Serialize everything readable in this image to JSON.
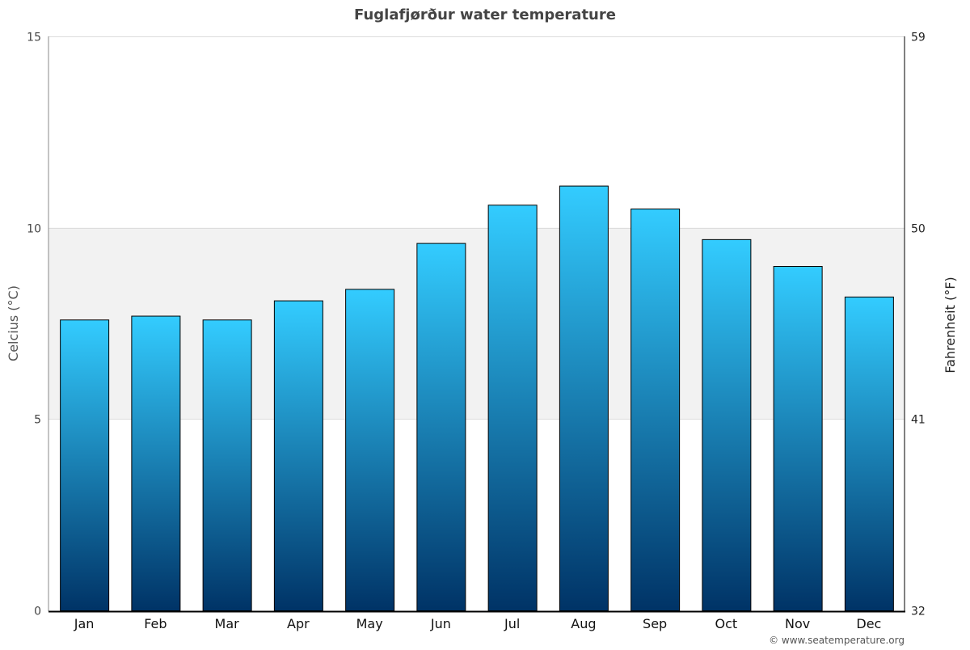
{
  "chart_data": {
    "type": "bar",
    "title": "Fuglafjørður water temperature",
    "ylabel": "Celcius (°C)",
    "ylabel_right": "Fahrenheit (°F)",
    "categories": [
      "Jan",
      "Feb",
      "Mar",
      "Apr",
      "May",
      "Jun",
      "Jul",
      "Aug",
      "Sep",
      "Oct",
      "Nov",
      "Dec"
    ],
    "values": [
      7.6,
      7.7,
      7.6,
      8.1,
      8.4,
      9.6,
      10.6,
      11.1,
      10.5,
      9.7,
      9.0,
      8.2
    ],
    "ylim": [
      0,
      15
    ],
    "yticks": [
      "0",
      "5",
      "10",
      "15"
    ],
    "yticks_right": [
      "32",
      "41",
      "50",
      "59"
    ],
    "shaded_band": [
      5,
      10
    ],
    "grid": true,
    "colors": {
      "bar_top": "#33ccff",
      "bar_bottom": "#003366",
      "band": "#f2f2f2",
      "title": "#444444"
    }
  },
  "footer": {
    "credit": "© www.seatemperature.org"
  }
}
